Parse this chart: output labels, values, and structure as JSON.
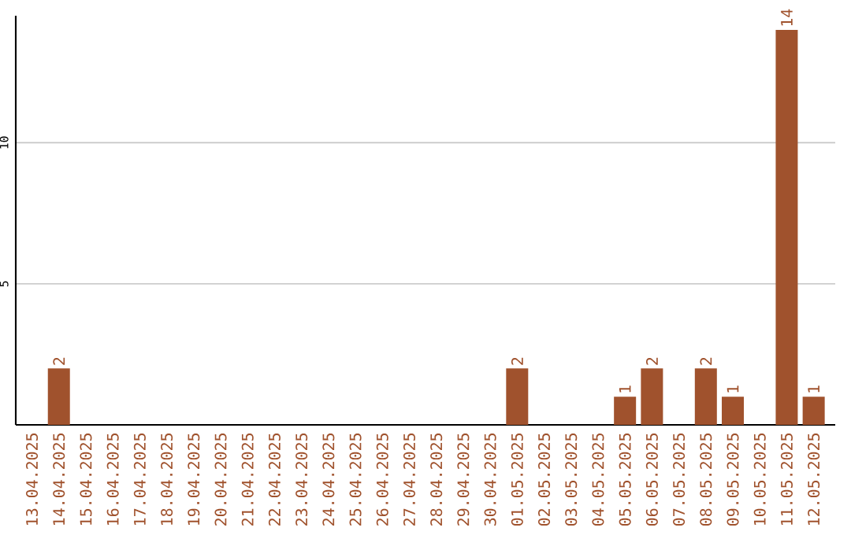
{
  "chart_data": {
    "type": "bar",
    "color": "#a0522d",
    "categories": [
      "13.04.2025",
      "14.04.2025",
      "15.04.2025",
      "16.04.2025",
      "17.04.2025",
      "18.04.2025",
      "19.04.2025",
      "20.04.2025",
      "21.04.2025",
      "22.04.2025",
      "23.04.2025",
      "24.04.2025",
      "25.04.2025",
      "26.04.2025",
      "27.04.2025",
      "28.04.2025",
      "29.04.2025",
      "30.04.2025",
      "01.05.2025",
      "02.05.2025",
      "03.05.2025",
      "04.05.2025",
      "05.05.2025",
      "06.05.2025",
      "07.05.2025",
      "08.05.2025",
      "09.05.2025",
      "10.05.2025",
      "11.05.2025",
      "12.05.2025"
    ],
    "values": [
      0,
      2,
      0,
      0,
      0,
      0,
      0,
      0,
      0,
      0,
      0,
      0,
      0,
      0,
      0,
      0,
      0,
      0,
      2,
      0,
      0,
      0,
      1,
      2,
      0,
      2,
      1,
      0,
      14,
      1
    ],
    "value_labels": [
      null,
      "2",
      null,
      null,
      null,
      null,
      null,
      null,
      null,
      null,
      null,
      null,
      null,
      null,
      null,
      null,
      null,
      null,
      "2",
      null,
      null,
      null,
      "1",
      "2",
      null,
      "2",
      "1",
      null,
      "14",
      "1"
    ],
    "ylim": [
      0,
      14.5
    ],
    "yticks": [
      5,
      10
    ],
    "grid": "y"
  }
}
